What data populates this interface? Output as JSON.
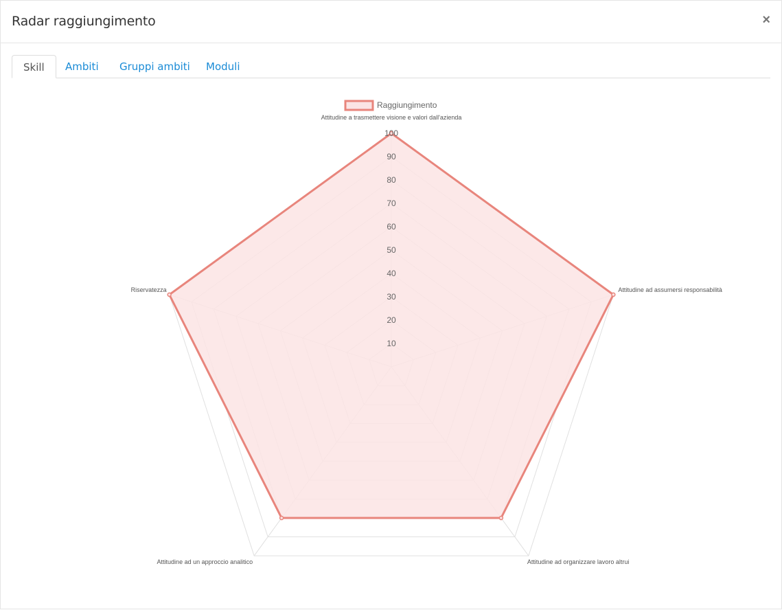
{
  "modal": {
    "title": "Radar raggiungimento",
    "close_label": "×"
  },
  "tabs": [
    {
      "label": "Skill",
      "active": true
    },
    {
      "label": "Ambiti",
      "active": false
    },
    {
      "label": "Gruppi ambiti",
      "active": false
    },
    {
      "label": "Moduli",
      "active": false
    }
  ],
  "colors": {
    "series_stroke": "#e8857c",
    "series_fill": "#fbe4e4",
    "grid": "#e0e0e0",
    "link": "#1a8bd6"
  },
  "chart_data": {
    "type": "radar",
    "title": "",
    "legend_position": "top",
    "categories": [
      "Attitudine a trasmettere visione e valori dall'azienda",
      "Attitudine ad assumersi responsabilità",
      "Attitudine ad organizzare lavoro altrui",
      "Attitudine ad un approccio analitico",
      "Riservatezza"
    ],
    "series": [
      {
        "name": "Raggiungimento",
        "values": [
          100,
          100,
          80,
          80,
          100
        ]
      }
    ],
    "rlim": [
      0,
      100
    ],
    "ticks": [
      "10",
      "20",
      "30",
      "40",
      "50",
      "60",
      "70",
      "80",
      "90",
      "100"
    ],
    "grid": true
  }
}
